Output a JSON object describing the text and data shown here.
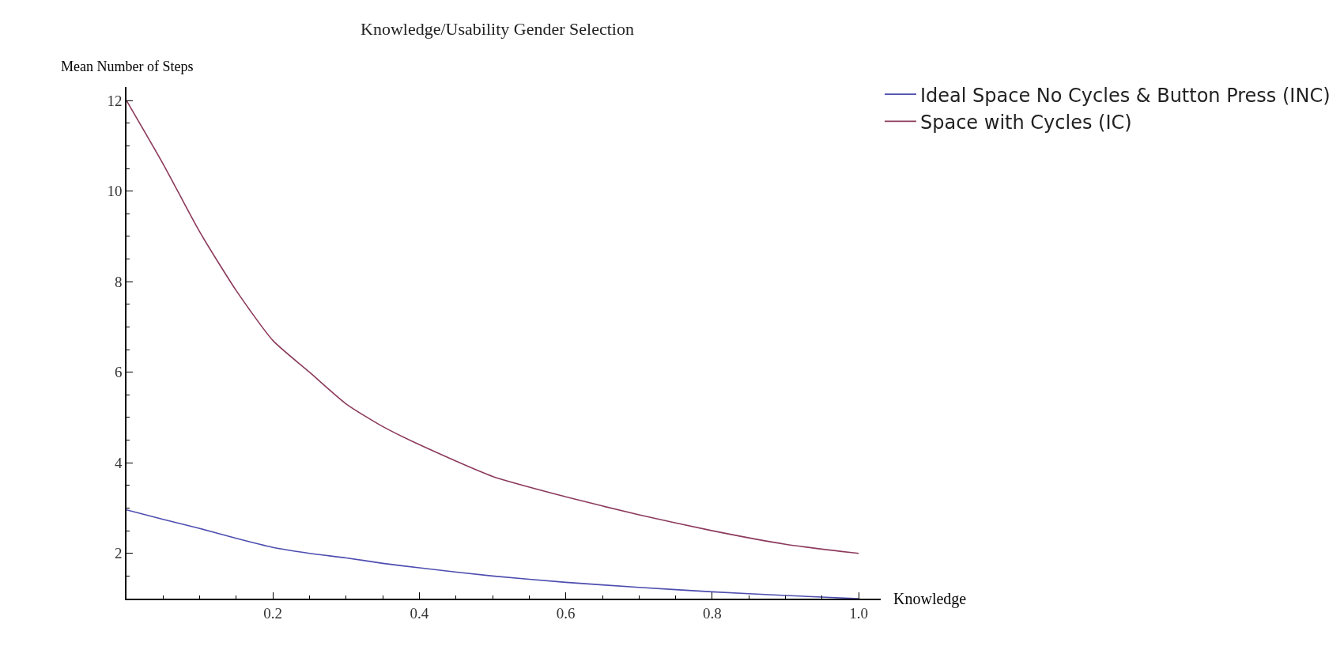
{
  "chart_data": {
    "type": "line",
    "title": "Knowledge/Usability Gender Selection",
    "xlabel": "Knowledge",
    "ylabel": "Mean Number of Steps",
    "x": [
      0,
      0.05,
      0.1,
      0.15,
      0.2,
      0.25,
      0.3,
      0.35,
      0.4,
      0.5,
      0.6,
      0.7,
      0.8,
      0.9,
      1.0
    ],
    "series": [
      {
        "name": "Ideal Space No Cycles & Button Press (INC)",
        "color": "#4d4db0",
        "values": [
          2.96,
          2.75,
          2.55,
          2.33,
          2.13,
          2.0,
          1.9,
          1.78,
          1.68,
          1.5,
          1.36,
          1.25,
          1.15,
          1.07,
          1.0
        ]
      },
      {
        "name": "Space with Cycles (IC)",
        "color": "#8c3a5c",
        "values": [
          12,
          10.6,
          9.1,
          7.8,
          6.7,
          6.0,
          5.3,
          4.8,
          4.4,
          3.7,
          3.25,
          2.85,
          2.5,
          2.2,
          2.0
        ]
      }
    ],
    "xlim": [
      0,
      1.03
    ],
    "ylim": [
      1,
      12.3
    ],
    "xticks": [
      0.2,
      0.4,
      0.6,
      0.8,
      {
        "value": 1,
        "label": "1.0"
      }
    ],
    "yticks": [
      2,
      4,
      6,
      8,
      10,
      12
    ],
    "grid": false,
    "legend": "top right",
    "marker": "none",
    "line_style": "solid"
  }
}
